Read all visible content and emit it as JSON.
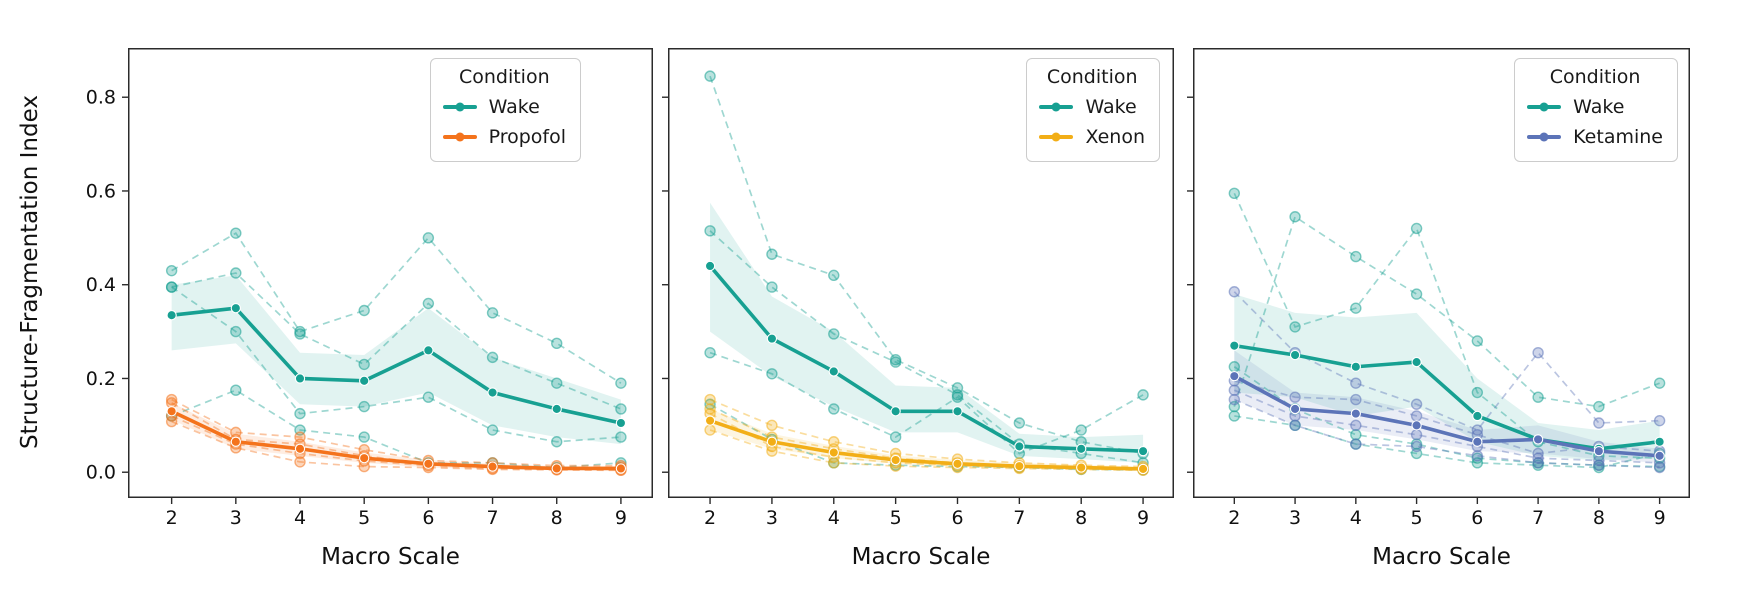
{
  "figure": {
    "ylabel": "Structure-Fragmentation Index",
    "xlabel": "Macro Scale",
    "y_ticks": [
      {
        "label": "0.0",
        "value": 0.0
      },
      {
        "label": "0.2",
        "value": 0.2
      },
      {
        "label": "0.4",
        "value": 0.4
      },
      {
        "label": "0.6",
        "value": 0.6
      },
      {
        "label": "0.8",
        "value": 0.8
      }
    ],
    "x_ticks": [
      2,
      3,
      4,
      5,
      6,
      7,
      8,
      9
    ],
    "axis_color": "#2b2b2b",
    "text_color": "#111111"
  },
  "chart_data": [
    {
      "type": "line",
      "title": "",
      "xlabel": "Macro Scale",
      "ylabel": "Structure-Fragmentation Index",
      "x": [
        2,
        3,
        4,
        5,
        6,
        7,
        8,
        9
      ],
      "xlim": [
        1.32,
        9.5
      ],
      "ylim": [
        -0.055,
        0.905
      ],
      "grid": false,
      "legend": {
        "title": "Condition",
        "position": "upper right",
        "entries": [
          {
            "label": "Wake",
            "color": "#17A092"
          },
          {
            "label": "Propofol",
            "color": "#F4731C"
          }
        ]
      },
      "series": [
        {
          "name": "Wake mean",
          "role": "mean",
          "color": "#17A092",
          "values": [
            0.335,
            0.35,
            0.2,
            0.195,
            0.26,
            0.17,
            0.135,
            0.105
          ],
          "band_low": [
            0.26,
            0.275,
            0.145,
            0.14,
            0.17,
            0.1,
            0.075,
            0.06
          ],
          "band_high": [
            0.4,
            0.42,
            0.255,
            0.25,
            0.35,
            0.245,
            0.2,
            0.155
          ]
        },
        {
          "name": "Wake subject 1",
          "role": "individual",
          "color": "#17A092",
          "values": [
            0.43,
            0.51,
            0.3,
            0.345,
            0.5,
            0.34,
            0.275,
            0.19
          ]
        },
        {
          "name": "Wake subject 2",
          "role": "individual",
          "color": "#17A092",
          "values": [
            0.395,
            0.425,
            0.295,
            0.23,
            0.36,
            0.245,
            0.19,
            0.135
          ]
        },
        {
          "name": "Wake subject 3",
          "role": "individual",
          "color": "#17A092",
          "values": [
            0.395,
            0.3,
            0.125,
            0.14,
            0.16,
            0.09,
            0.065,
            0.075
          ]
        },
        {
          "name": "Wake subject 4",
          "role": "individual",
          "color": "#17A092",
          "values": [
            0.12,
            0.175,
            0.09,
            0.075,
            0.02,
            0.02,
            0.01,
            0.02
          ]
        },
        {
          "name": "Propofol mean",
          "role": "mean",
          "color": "#F4731C",
          "values": [
            0.13,
            0.065,
            0.05,
            0.03,
            0.018,
            0.012,
            0.008,
            0.008
          ],
          "band_low": [
            0.112,
            0.05,
            0.035,
            0.02,
            0.01,
            0.006,
            0.004,
            0.004
          ],
          "band_high": [
            0.148,
            0.082,
            0.065,
            0.042,
            0.026,
            0.018,
            0.013,
            0.013
          ]
        },
        {
          "name": "Propofol subject 1",
          "role": "individual",
          "color": "#F4731C",
          "values": [
            0.155,
            0.085,
            0.075,
            0.048,
            0.025,
            0.02,
            0.014,
            0.014
          ]
        },
        {
          "name": "Propofol subject 2",
          "role": "individual",
          "color": "#F4731C",
          "values": [
            0.148,
            0.07,
            0.06,
            0.035,
            0.018,
            0.012,
            0.008,
            0.01
          ]
        },
        {
          "name": "Propofol subject 3",
          "role": "individual",
          "color": "#F4731C",
          "values": [
            0.12,
            0.06,
            0.04,
            0.024,
            0.014,
            0.008,
            0.006,
            0.005
          ]
        },
        {
          "name": "Propofol subject 4",
          "role": "individual",
          "color": "#F4731C",
          "values": [
            0.108,
            0.052,
            0.022,
            0.012,
            0.01,
            0.006,
            0.005,
            0.004
          ]
        }
      ]
    },
    {
      "type": "line",
      "title": "",
      "xlabel": "Macro Scale",
      "x": [
        2,
        3,
        4,
        5,
        6,
        7,
        8,
        9
      ],
      "xlim": [
        1.32,
        9.5
      ],
      "ylim": [
        -0.055,
        0.905
      ],
      "grid": false,
      "legend": {
        "title": "Condition",
        "position": "upper right",
        "entries": [
          {
            "label": "Wake",
            "color": "#17A092"
          },
          {
            "label": "Xenon",
            "color": "#F2AE17"
          }
        ]
      },
      "series": [
        {
          "name": "Wake mean",
          "role": "mean",
          "color": "#17A092",
          "values": [
            0.44,
            0.285,
            0.215,
            0.13,
            0.13,
            0.055,
            0.05,
            0.045
          ],
          "band_low": [
            0.3,
            0.205,
            0.14,
            0.085,
            0.085,
            0.035,
            0.028,
            0.02
          ],
          "band_high": [
            0.575,
            0.375,
            0.3,
            0.185,
            0.18,
            0.082,
            0.075,
            0.08
          ]
        },
        {
          "name": "Wake subject 1",
          "role": "individual",
          "color": "#17A092",
          "values": [
            0.845,
            0.465,
            0.42,
            0.24,
            0.18,
            0.105,
            0.065,
            0.04
          ]
        },
        {
          "name": "Wake subject 2",
          "role": "individual",
          "color": "#17A092",
          "values": [
            0.515,
            0.395,
            0.295,
            0.235,
            0.165,
            0.06,
            0.04,
            0.02
          ]
        },
        {
          "name": "Wake subject 3",
          "role": "individual",
          "color": "#17A092",
          "values": [
            0.255,
            0.21,
            0.135,
            0.075,
            0.16,
            0.04,
            0.09,
            0.165
          ]
        },
        {
          "name": "Wake subject 4",
          "role": "individual",
          "color": "#17A092",
          "values": [
            0.145,
            0.07,
            0.02,
            0.015,
            0.012,
            0.01,
            0.006,
            0.005
          ]
        },
        {
          "name": "Xenon mean",
          "role": "mean",
          "color": "#F2AE17",
          "values": [
            0.11,
            0.065,
            0.042,
            0.026,
            0.018,
            0.013,
            0.01,
            0.007
          ],
          "band_low": [
            0.09,
            0.05,
            0.03,
            0.018,
            0.012,
            0.008,
            0.006,
            0.004
          ],
          "band_high": [
            0.135,
            0.082,
            0.056,
            0.036,
            0.026,
            0.02,
            0.016,
            0.012
          ]
        },
        {
          "name": "Xenon subject 1",
          "role": "individual",
          "color": "#F2AE17",
          "values": [
            0.155,
            0.1,
            0.065,
            0.04,
            0.028,
            0.02,
            0.015,
            0.012
          ]
        },
        {
          "name": "Xenon subject 2",
          "role": "individual",
          "color": "#F2AE17",
          "values": [
            0.135,
            0.075,
            0.05,
            0.03,
            0.02,
            0.014,
            0.01,
            0.008
          ]
        },
        {
          "name": "Xenon subject 3",
          "role": "individual",
          "color": "#F2AE17",
          "values": [
            0.125,
            0.055,
            0.032,
            0.02,
            0.014,
            0.01,
            0.008,
            0.006
          ]
        },
        {
          "name": "Xenon subject 4",
          "role": "individual",
          "color": "#F2AE17",
          "values": [
            0.09,
            0.045,
            0.02,
            0.013,
            0.01,
            0.008,
            0.006,
            0.004
          ]
        }
      ]
    },
    {
      "type": "line",
      "title": "",
      "xlabel": "Macro Scale",
      "x": [
        2,
        3,
        4,
        5,
        6,
        7,
        8,
        9
      ],
      "xlim": [
        1.32,
        9.5
      ],
      "ylim": [
        -0.055,
        0.905
      ],
      "grid": false,
      "legend": {
        "title": "Condition",
        "position": "upper right",
        "entries": [
          {
            "label": "Wake",
            "color": "#17A092"
          },
          {
            "label": "Ketamine",
            "color": "#5C74B8"
          }
        ]
      },
      "series": [
        {
          "name": "Wake mean",
          "role": "mean",
          "color": "#17A092",
          "values": [
            0.27,
            0.25,
            0.225,
            0.235,
            0.12,
            0.07,
            0.05,
            0.065
          ],
          "band_low": [
            0.17,
            0.16,
            0.12,
            0.14,
            0.065,
            0.035,
            0.025,
            0.03
          ],
          "band_high": [
            0.38,
            0.34,
            0.33,
            0.34,
            0.2,
            0.105,
            0.09,
            0.11
          ]
        },
        {
          "name": "Wake subject 1",
          "role": "individual",
          "color": "#17A092",
          "values": [
            0.595,
            0.31,
            0.35,
            0.52,
            0.17,
            0.065,
            0.035,
            0.03
          ]
        },
        {
          "name": "Wake subject 2",
          "role": "individual",
          "color": "#17A092",
          "values": [
            0.14,
            0.545,
            0.46,
            0.38,
            0.28,
            0.16,
            0.14,
            0.19
          ]
        },
        {
          "name": "Wake subject 3",
          "role": "individual",
          "color": "#17A092",
          "values": [
            0.225,
            0.135,
            0.08,
            0.06,
            0.03,
            0.02,
            0.015,
            0.012
          ]
        },
        {
          "name": "Wake subject 4",
          "role": "individual",
          "color": "#17A092",
          "values": [
            0.12,
            0.1,
            0.06,
            0.04,
            0.02,
            0.015,
            0.01,
            0.04
          ]
        },
        {
          "name": "Ketamine mean",
          "role": "mean",
          "color": "#5C74B8",
          "values": [
            0.205,
            0.135,
            0.125,
            0.1,
            0.065,
            0.07,
            0.045,
            0.035
          ],
          "band_low": [
            0.155,
            0.1,
            0.09,
            0.07,
            0.045,
            0.04,
            0.028,
            0.02
          ],
          "band_high": [
            0.26,
            0.17,
            0.16,
            0.13,
            0.09,
            0.1,
            0.065,
            0.05
          ]
        },
        {
          "name": "Ketamine subject 1",
          "role": "individual",
          "color": "#5C74B8",
          "values": [
            0.385,
            0.255,
            0.19,
            0.145,
            0.09,
            0.255,
            0.105,
            0.11
          ]
        },
        {
          "name": "Ketamine subject 2",
          "role": "individual",
          "color": "#5C74B8",
          "values": [
            0.195,
            0.16,
            0.155,
            0.12,
            0.08,
            0.04,
            0.055,
            0.045
          ]
        },
        {
          "name": "Ketamine subject 3",
          "role": "individual",
          "color": "#5C74B8",
          "values": [
            0.175,
            0.12,
            0.1,
            0.08,
            0.055,
            0.03,
            0.025,
            0.02
          ]
        },
        {
          "name": "Ketamine subject 4",
          "role": "individual",
          "color": "#5C74B8",
          "values": [
            0.155,
            0.1,
            0.06,
            0.055,
            0.035,
            0.02,
            0.015,
            0.01
          ]
        }
      ]
    }
  ]
}
